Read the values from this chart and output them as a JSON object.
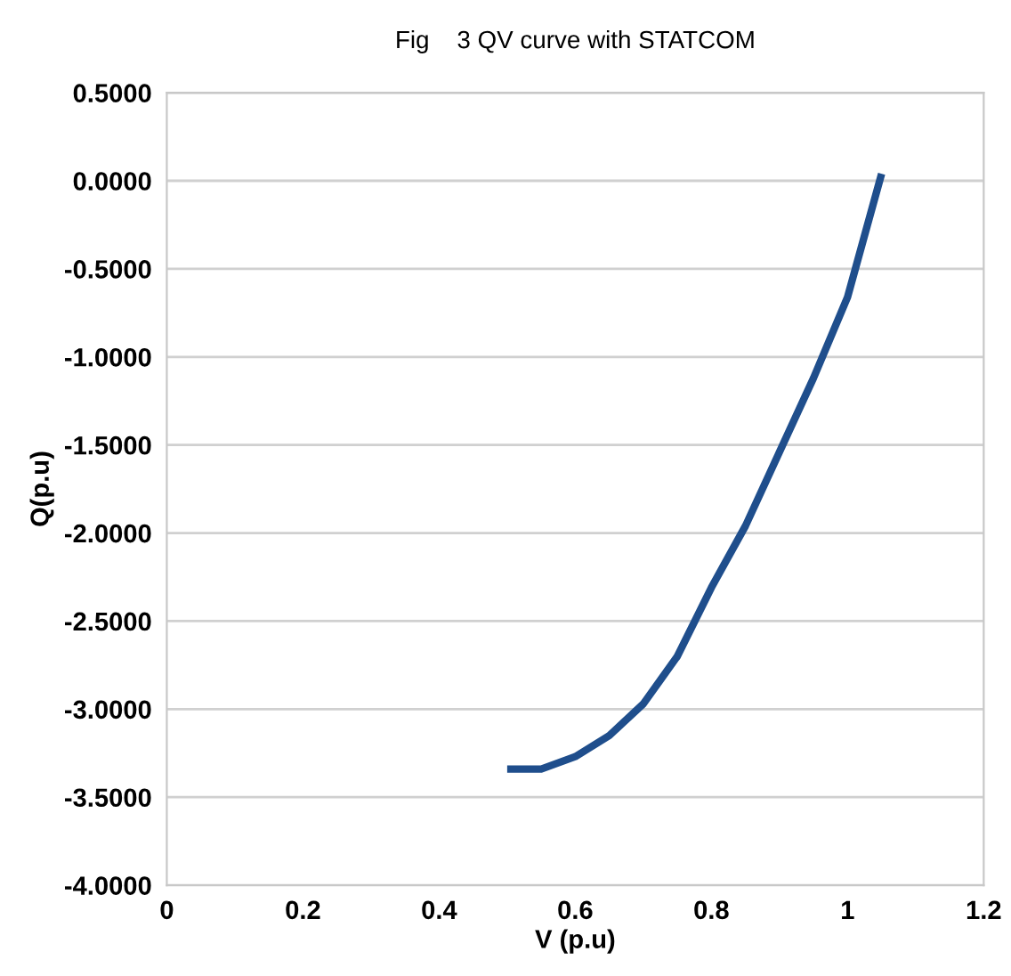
{
  "chart_data": {
    "type": "line",
    "title": "Fig    3 QV curve with STATCOM",
    "xlabel": "V (p.u)",
    "ylabel": "Q(p.u)",
    "series": [
      {
        "color": "#1f4e8c",
        "x": [
          0.5,
          0.55,
          0.6,
          0.65,
          0.7,
          0.75,
          0.8,
          0.85,
          0.9,
          0.95,
          1.0,
          1.05
        ],
        "values": [
          -3.34,
          -3.34,
          -3.27,
          -3.15,
          -2.97,
          -2.7,
          -2.31,
          -1.96,
          -1.54,
          -1.12,
          -0.66,
          0.04
        ]
      }
    ],
    "xlim": [
      0,
      1.2
    ],
    "xticks": [
      0,
      0.2,
      0.4,
      0.6,
      0.8,
      1,
      1.2
    ],
    "ylim": [
      -4,
      0.5
    ],
    "yticks": [
      {
        "value": 0.5,
        "label": "0.5000"
      },
      {
        "value": 0,
        "label": "0.0000"
      },
      {
        "value": -0.5,
        "label": "-0.5000"
      },
      {
        "value": -1,
        "label": "-1.0000"
      },
      {
        "value": -1.5,
        "label": "-1.5000"
      },
      {
        "value": -2,
        "label": "-2.0000"
      },
      {
        "value": -2.5,
        "label": "-2.5000"
      },
      {
        "value": -3,
        "label": "-3.0000"
      },
      {
        "value": -3.5,
        "label": "-3.5000"
      },
      {
        "value": -4,
        "label": "-4.0000"
      }
    ],
    "grid": "y",
    "marker": "none",
    "line_style": "solid",
    "legend": false
  }
}
